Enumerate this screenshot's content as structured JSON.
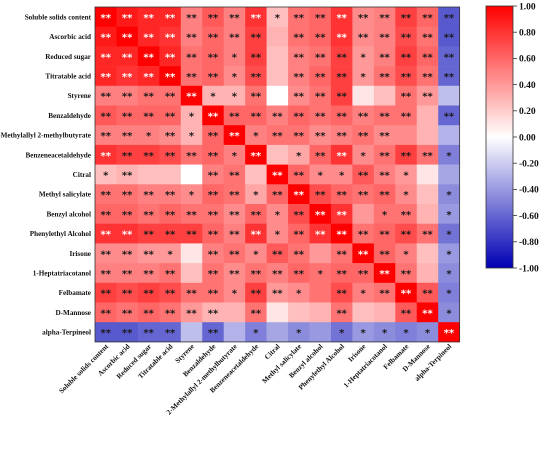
{
  "chart_data": {
    "type": "heatmap",
    "variables": [
      "Soluble solids content",
      "Ascorbic acid",
      "Reduced sugar",
      "Titratable acid",
      "Styrene",
      "Benzaldehyde",
      "2-Methylallyl 2-methylbutyrate",
      "Benzeneacetaldehyde",
      "Citral",
      "Methyl salicylate",
      "Benzyl alcohol",
      "Phenylethyl Alcohol",
      "Irisone",
      "1-Heptatriacotanol",
      "Felbamate",
      "D-Mannose",
      "alpha-Terpineol"
    ],
    "values": [
      [
        1.0,
        0.9,
        0.85,
        0.85,
        0.5,
        0.65,
        0.5,
        0.8,
        0.25,
        0.55,
        0.6,
        0.8,
        0.45,
        0.5,
        0.75,
        0.6,
        -0.65
      ],
      [
        0.9,
        1.0,
        0.85,
        0.8,
        0.5,
        0.6,
        0.5,
        0.75,
        0.3,
        0.55,
        0.6,
        0.8,
        0.45,
        0.5,
        0.7,
        0.55,
        -0.65
      ],
      [
        0.85,
        0.85,
        1.0,
        0.85,
        0.55,
        0.6,
        0.5,
        0.75,
        0.25,
        0.5,
        0.55,
        0.75,
        0.4,
        0.5,
        0.75,
        0.6,
        -0.6
      ],
      [
        0.85,
        0.8,
        0.85,
        1.0,
        0.55,
        0.6,
        0.45,
        0.7,
        0.25,
        0.5,
        0.6,
        0.75,
        0.4,
        0.55,
        0.7,
        0.55,
        -0.6
      ],
      [
        0.5,
        0.5,
        0.55,
        0.55,
        1.0,
        0.3,
        0.3,
        0.55,
        0.0,
        0.45,
        0.55,
        0.75,
        0.1,
        0.25,
        0.55,
        0.4,
        -0.25
      ],
      [
        0.65,
        0.6,
        0.6,
        0.6,
        0.3,
        1.0,
        0.6,
        0.6,
        0.5,
        0.6,
        0.55,
        0.6,
        0.5,
        0.55,
        0.55,
        0.3,
        -0.6
      ],
      [
        0.5,
        0.5,
        0.5,
        0.45,
        0.3,
        0.6,
        1.0,
        0.5,
        0.55,
        0.55,
        0.45,
        0.5,
        0.55,
        0.45,
        0.45,
        0.3,
        -0.3
      ],
      [
        0.8,
        0.75,
        0.75,
        0.7,
        0.55,
        0.6,
        0.5,
        1.0,
        0.25,
        0.35,
        0.6,
        0.8,
        0.45,
        0.55,
        0.75,
        0.55,
        -0.5
      ],
      [
        0.25,
        0.3,
        0.25,
        0.25,
        0.0,
        0.5,
        0.55,
        0.25,
        1.0,
        0.6,
        0.45,
        0.45,
        0.65,
        0.5,
        0.4,
        0.1,
        -0.35
      ],
      [
        0.55,
        0.55,
        0.5,
        0.5,
        0.45,
        0.6,
        0.55,
        0.35,
        0.6,
        1.0,
        0.7,
        0.6,
        0.55,
        0.6,
        0.45,
        0.25,
        -0.45
      ],
      [
        0.6,
        0.6,
        0.55,
        0.6,
        0.55,
        0.55,
        0.45,
        0.6,
        0.45,
        0.7,
        1.0,
        0.8,
        0.4,
        0.55,
        0.55,
        0.3,
        -0.4
      ],
      [
        0.8,
        0.8,
        0.75,
        0.75,
        0.75,
        0.6,
        0.5,
        0.8,
        0.45,
        0.6,
        0.8,
        1.0,
        0.55,
        0.6,
        0.7,
        0.55,
        -0.55
      ],
      [
        0.45,
        0.45,
        0.4,
        0.4,
        0.1,
        0.5,
        0.55,
        0.45,
        0.65,
        0.55,
        0.4,
        0.55,
        1.0,
        0.6,
        0.5,
        0.25,
        -0.4
      ],
      [
        0.5,
        0.5,
        0.5,
        0.55,
        0.25,
        0.55,
        0.45,
        0.55,
        0.5,
        0.6,
        0.55,
        0.6,
        0.6,
        1.0,
        0.55,
        0.3,
        -0.45
      ],
      [
        0.75,
        0.7,
        0.75,
        0.7,
        0.55,
        0.55,
        0.45,
        0.75,
        0.4,
        0.45,
        0.55,
        0.7,
        0.5,
        0.55,
        1.0,
        0.65,
        -0.5
      ],
      [
        0.6,
        0.55,
        0.6,
        0.55,
        0.4,
        0.3,
        0.3,
        0.55,
        0.1,
        0.25,
        0.3,
        0.55,
        0.25,
        0.3,
        0.65,
        1.0,
        -0.45
      ],
      [
        -0.65,
        -0.65,
        -0.6,
        -0.6,
        -0.25,
        -0.6,
        -0.3,
        -0.5,
        -0.35,
        -0.45,
        -0.4,
        -0.55,
        -0.4,
        -0.45,
        -0.5,
        -0.45,
        1.0
      ]
    ],
    "significance": [
      [
        "**",
        "**",
        "**",
        "**",
        "**",
        "**",
        "**",
        "**",
        "*",
        "**",
        "**",
        "**",
        "**",
        "**",
        "**",
        "**",
        "**"
      ],
      [
        "**",
        "**",
        "**",
        "**",
        "**",
        "**",
        "**",
        "**",
        "",
        "**",
        "**",
        "**",
        "**",
        "**",
        "**",
        "**",
        "**"
      ],
      [
        "**",
        "**",
        "**",
        "**",
        "**",
        "**",
        "*",
        "**",
        "",
        "**",
        "**",
        "**",
        "*",
        "**",
        "**",
        "**",
        "**"
      ],
      [
        "**",
        "**",
        "**",
        "**",
        "**",
        "**",
        "*",
        "**",
        "",
        "**",
        "**",
        "**",
        "*",
        "**",
        "**",
        "**",
        "**"
      ],
      [
        "**",
        "**",
        "**",
        "**",
        "**",
        "*",
        "*",
        "**",
        "",
        "**",
        "**",
        "**",
        "",
        "",
        "**",
        "**",
        ""
      ],
      [
        "**",
        "**",
        "**",
        "**",
        "*",
        "**",
        "**",
        "**",
        "**",
        "**",
        "**",
        "**",
        "**",
        "**",
        "**",
        "",
        "**"
      ],
      [
        "**",
        "**",
        "*",
        "**",
        "*",
        "**",
        "**",
        "*",
        "**",
        "**",
        "**",
        "**",
        "**",
        "**",
        "",
        "",
        ""
      ],
      [
        "**",
        "**",
        "**",
        "**",
        "**",
        "**",
        "*",
        "**",
        "",
        "*",
        "**",
        "**",
        "*",
        "**",
        "**",
        "**",
        "*"
      ],
      [
        "*",
        "**",
        "",
        "",
        "",
        "**",
        "**",
        "",
        "**",
        "**",
        "*",
        "*",
        "**",
        "**",
        "*",
        "",
        ""
      ],
      [
        "**",
        "**",
        "**",
        "**",
        "*",
        "**",
        "**",
        "*",
        "**",
        "**",
        "**",
        "**",
        "**",
        "**",
        "*",
        "",
        "*"
      ],
      [
        "**",
        "**",
        "**",
        "**",
        "**",
        "**",
        "**",
        "**",
        "*",
        "**",
        "**",
        "**",
        "",
        "*",
        "**",
        "",
        "*"
      ],
      [
        "**",
        "**",
        "**",
        "**",
        "**",
        "**",
        "**",
        "**",
        "*",
        "**",
        "**",
        "**",
        "**",
        "**",
        "**",
        "**",
        "*"
      ],
      [
        "**",
        "**",
        "**",
        "*",
        "",
        "**",
        "**",
        "*",
        "**",
        "**",
        "",
        "**",
        "**",
        "**",
        "*",
        "",
        "*"
      ],
      [
        "**",
        "**",
        "**",
        "**",
        "",
        "**",
        "**",
        "**",
        "**",
        "**",
        "*",
        "**",
        "**",
        "**",
        "**",
        "",
        "*"
      ],
      [
        "**",
        "**",
        "**",
        "**",
        "**",
        "**",
        "*",
        "**",
        "**",
        "*",
        "",
        "**",
        "*",
        "**",
        "**",
        "**",
        "*"
      ],
      [
        "**",
        "**",
        "**",
        "**",
        "**",
        "**",
        "",
        "**",
        "",
        "",
        "",
        "**",
        "",
        "",
        "**",
        "**",
        "*"
      ],
      [
        "**",
        "**",
        "**",
        "**",
        "",
        "**",
        "",
        "*",
        "",
        "*",
        "",
        "*",
        "*",
        "*",
        "*",
        "*",
        "**"
      ]
    ],
    "colorbar": {
      "min": -1.0,
      "max": 1.0,
      "ticks": [
        "1.00",
        "0.80",
        "0.60",
        "0.40",
        "0.20",
        "0.00",
        "-0.20",
        "-0.40",
        "-0.60",
        "-0.80",
        "-1.00"
      ],
      "colors": {
        "negative": "#0000b4",
        "zero": "#ffffff",
        "positive": "#ff0000"
      }
    },
    "legend_placement": "right"
  }
}
